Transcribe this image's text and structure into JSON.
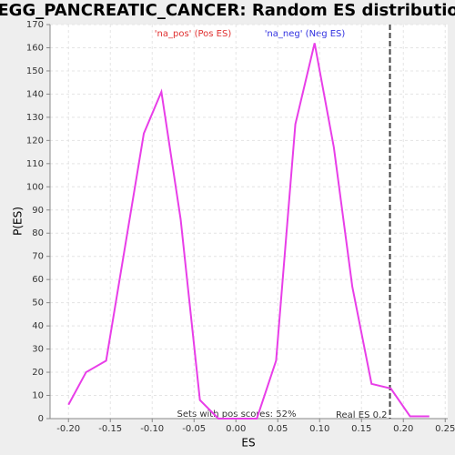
{
  "chart_data": {
    "type": "line",
    "title": "KEGG_PANCREATIC_CANCER: Random ES distribution",
    "x_label": "ES",
    "y_label": "P(ES)",
    "legend": [
      "'na_pos' (Pos ES)",
      "'na_neg' (Neg ES)"
    ],
    "legend_colors": [
      "#e03030",
      "#3030e0"
    ],
    "annotations": [
      "Sets with pos scores: 52%",
      "Real ES 0.2"
    ],
    "real_es": 0.184,
    "x": [
      -0.2,
      -0.179,
      -0.155,
      -0.11,
      -0.089,
      -0.066,
      -0.043,
      -0.021,
      0.001,
      0.025,
      0.048,
      0.071,
      0.094,
      0.117,
      0.139,
      0.162,
      0.185,
      0.208,
      0.231
    ],
    "series": [
      {
        "color": "#e83ee8",
        "values": [
          6,
          20,
          25,
          123,
          141,
          86,
          8,
          0,
          0,
          0,
          25,
          127,
          162,
          117,
          57,
          15,
          13,
          1,
          1
        ]
      }
    ],
    "xlim": [
      -0.222,
      0.253
    ],
    "ylim": [
      0,
      170
    ],
    "xticks": [
      {
        "value": -0.2,
        "label": "-0.20"
      },
      {
        "value": -0.15,
        "label": "-0.15"
      },
      {
        "value": -0.1,
        "label": "-0.10"
      },
      {
        "value": -0.05,
        "label": "-0.05"
      },
      {
        "value": 0,
        "label": "0.00"
      },
      {
        "value": 0.05,
        "label": "0.05"
      },
      {
        "value": 0.1,
        "label": "0.10"
      },
      {
        "value": 0.15,
        "label": "0.15"
      },
      {
        "value": 0.2,
        "label": "0.20"
      },
      {
        "value": 0.25,
        "label": "0.25"
      }
    ],
    "yticks": [
      0,
      10,
      20,
      30,
      40,
      50,
      60,
      70,
      80,
      90,
      100,
      110,
      120,
      130,
      140,
      150,
      160,
      170
    ],
    "grid": true
  }
}
